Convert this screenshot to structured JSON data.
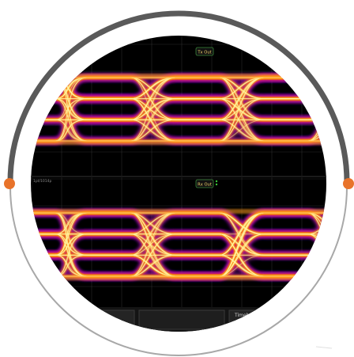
{
  "colors": {
    "background": "#ffffff",
    "ring_top": "#5a5a5a",
    "ring_bottom": "#a8a8a8",
    "accent_dot": "#e8732a",
    "screen": "#000000",
    "grid": "#2a2a2a",
    "eye_hot": "#fff3a0",
    "eye_mid": "#ff9b1a",
    "eye_edge": "#d0206a",
    "eye_fringe": "#7a3aff",
    "tag_text": "#f2d36b",
    "tag_border": "#3c8a3c"
  },
  "scope": {
    "top_channel": {
      "tag": "Tx Out"
    },
    "bottom_channel": {
      "tag": "Rx Out"
    },
    "status_fragment": "1pt/1014p",
    "footer_fragment": "Timebas"
  },
  "icons": {
    "left_dot": "orange-dot-icon",
    "right_dot": "orange-dot-icon",
    "rx_indicator": "green-dots-icon"
  }
}
